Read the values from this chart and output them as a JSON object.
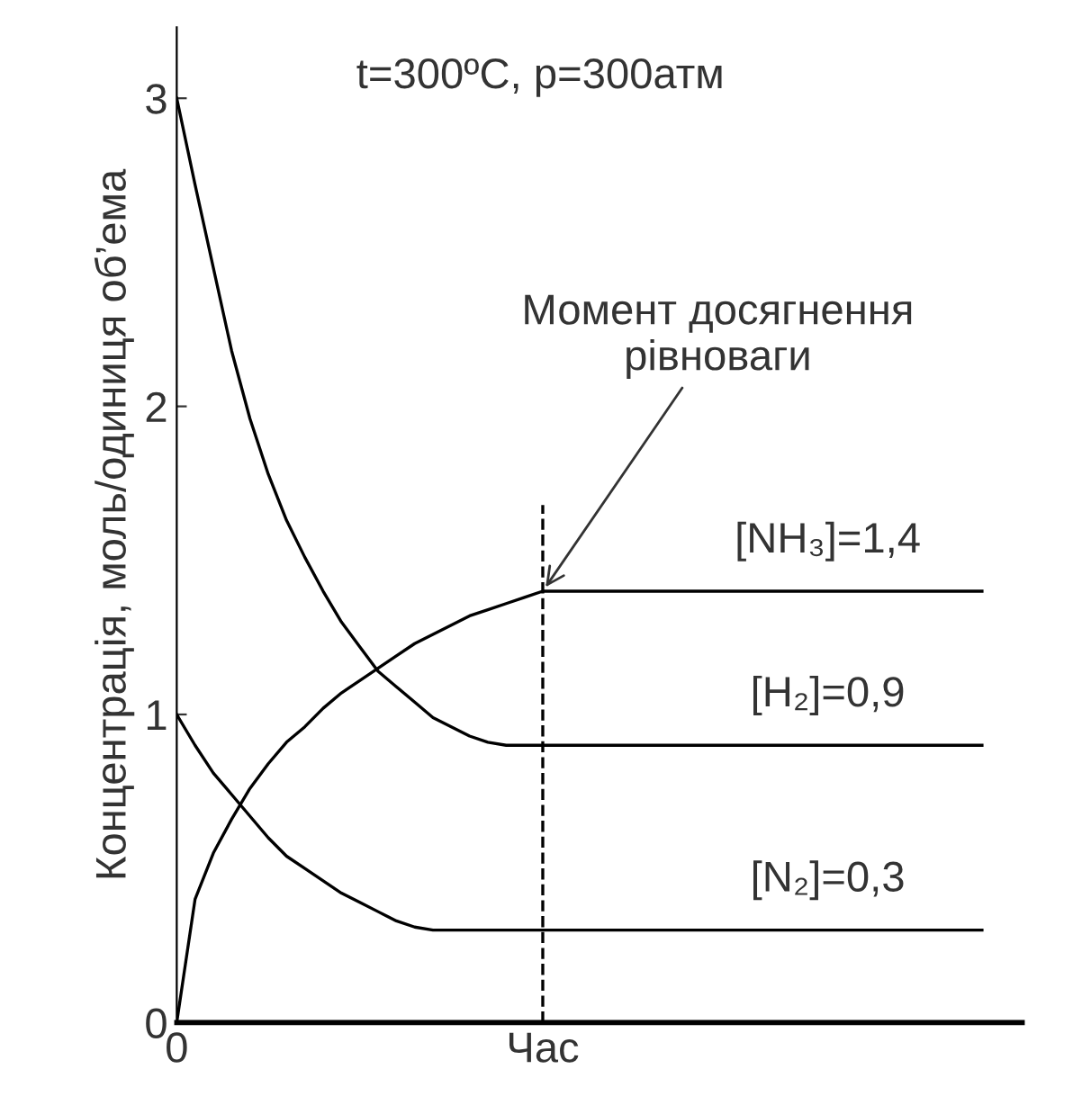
{
  "chart_data": {
    "type": "line",
    "title": "t=300ºC, p=300атм",
    "ylabel": "Концентрація, моль/одиниця об’ема",
    "categories": [
      "0",
      null,
      null,
      null,
      null,
      null,
      null,
      null,
      null,
      null,
      null,
      null,
      null,
      null,
      null,
      null,
      null,
      null,
      null,
      null,
      "Час",
      null,
      null,
      null,
      null,
      null,
      null,
      null,
      null,
      null,
      null,
      null,
      null,
      null,
      null,
      null,
      null,
      null,
      null,
      null,
      null,
      null,
      null,
      null,
      null
    ],
    "ylim": [
      0,
      3.23
    ],
    "yticks": [
      0,
      1,
      2,
      3
    ],
    "grid": false,
    "legend": false,
    "marker": "none",
    "line_style": "solid",
    "series": [
      {
        "color": "#000000",
        "values": [
          3,
          2.72,
          2.45,
          2.18,
          1.96,
          1.78,
          1.63,
          1.51,
          1.4,
          1.3,
          1.22,
          1.14,
          1.09,
          1.04,
          0.99,
          0.96,
          0.93,
          0.91,
          0.9,
          0.9,
          0.9,
          0.9,
          0.9,
          0.9,
          0.9,
          0.9,
          0.9,
          0.9,
          0.9,
          0.9,
          0.9,
          0.9,
          0.9,
          0.9,
          0.9,
          0.9,
          0.9,
          0.9,
          0.9,
          0.9,
          0.9,
          0.9,
          0.9,
          0.9,
          0.9
        ]
      },
      {
        "color": "#000000",
        "values": [
          1,
          0.9,
          0.81,
          0.74,
          0.67,
          0.6,
          0.54,
          0.5,
          0.46,
          0.42,
          0.39,
          0.36,
          0.33,
          0.31,
          0.3,
          0.3,
          0.3,
          0.3,
          0.3,
          0.3,
          0.3,
          0.3,
          0.3,
          0.3,
          0.3,
          0.3,
          0.3,
          0.3,
          0.3,
          0.3,
          0.3,
          0.3,
          0.3,
          0.3,
          0.3,
          0.3,
          0.3,
          0.3,
          0.3,
          0.3,
          0.3,
          0.3,
          0.3,
          0.3,
          0.3
        ]
      },
      {
        "color": "#000000",
        "values": [
          0,
          0.4,
          0.55,
          0.66,
          0.76,
          0.84,
          0.91,
          0.96,
          1.02,
          1.07,
          1.11,
          1.15,
          1.19,
          1.23,
          1.26,
          1.29,
          1.32,
          1.34,
          1.36,
          1.38,
          1.4,
          1.4,
          1.4,
          1.4,
          1.4,
          1.4,
          1.4,
          1.4,
          1.4,
          1.4,
          1.4,
          1.4,
          1.4,
          1.4,
          1.4,
          1.4,
          1.4,
          1.4,
          1.4,
          1.4,
          1.4,
          1.4,
          1.4,
          1.4,
          1.4
        ]
      }
    ],
    "ref_lines": [
      {
        "axis": "x",
        "value": "Час",
        "color": "#000000",
        "line_style": "dashed"
      }
    ],
    "annotations": [
      {
        "text": "Момент досягнення\nрівноваги",
        "x": "Час",
        "y": 1.4
      },
      {
        "text": "[NH₃]=1,4",
        "y": 1.4
      },
      {
        "text": "[H₂]=0,9",
        "y": 0.9
      },
      {
        "text": "[N₂]=0,3",
        "y": 0.3
      }
    ]
  }
}
